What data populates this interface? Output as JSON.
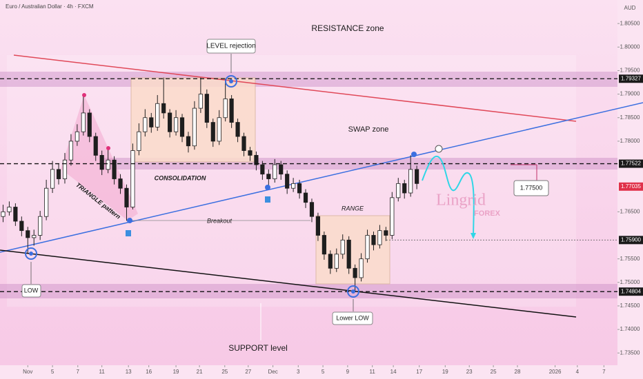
{
  "header": {
    "title": "Euro / Australian Dollar · 4h · FXCM",
    "currency": "AUD"
  },
  "chart_data": {
    "type": "candlestick",
    "up_color": "#1e1e1e",
    "down_color": "#1e1e1e",
    "xlim": [
      -0.5,
      99.5
    ],
    "ylim": [
      1.7324,
      1.81
    ],
    "x": [
      0,
      1,
      2,
      3,
      4,
      5,
      6,
      7,
      8,
      9,
      10,
      11,
      12,
      13,
      14,
      15,
      16,
      17,
      18,
      19,
      20,
      21,
      22,
      23,
      24,
      25,
      26,
      27,
      28,
      29,
      30,
      31,
      32,
      33,
      34,
      35,
      36,
      37,
      38,
      39,
      40,
      41,
      42,
      43,
      44,
      45,
      46,
      47,
      48,
      49,
      50,
      51,
      52,
      53,
      54,
      55,
      56,
      57,
      58,
      59,
      60,
      61,
      62,
      63,
      64,
      65,
      66,
      67
    ],
    "ohlc": [
      [
        1.764,
        1.7665,
        1.7628,
        1.765
      ],
      [
        1.765,
        1.7672,
        1.7642,
        1.766
      ],
      [
        1.766,
        1.7668,
        1.762,
        1.763
      ],
      [
        1.763,
        1.764,
        1.7598,
        1.761
      ],
      [
        1.761,
        1.7618,
        1.7562,
        1.7595
      ],
      [
        1.7595,
        1.7612,
        1.7578,
        1.76
      ],
      [
        1.76,
        1.7652,
        1.759,
        1.764
      ],
      [
        1.764,
        1.7718,
        1.7632,
        1.77
      ],
      [
        1.77,
        1.7758,
        1.769,
        1.774
      ],
      [
        1.774,
        1.7752,
        1.7708,
        1.772
      ],
      [
        1.772,
        1.7775,
        1.771,
        1.776
      ],
      [
        1.776,
        1.7815,
        1.7748,
        1.78
      ],
      [
        1.78,
        1.7836,
        1.779,
        1.782
      ],
      [
        1.782,
        1.7898,
        1.7812,
        1.786
      ],
      [
        1.786,
        1.7868,
        1.7798,
        1.781
      ],
      [
        1.781,
        1.7818,
        1.7758,
        1.777
      ],
      [
        1.777,
        1.778,
        1.7728,
        1.774
      ],
      [
        1.774,
        1.7785,
        1.7732,
        1.776
      ],
      [
        1.776,
        1.7768,
        1.7708,
        1.772
      ],
      [
        1.772,
        1.773,
        1.7688,
        1.77
      ],
      [
        1.77,
        1.7708,
        1.7631,
        1.766
      ],
      [
        1.766,
        1.7795,
        1.7655,
        1.778
      ],
      [
        1.778,
        1.7838,
        1.777,
        1.782
      ],
      [
        1.782,
        1.7868,
        1.781,
        1.785
      ],
      [
        1.785,
        1.786,
        1.7818,
        1.783
      ],
      [
        1.783,
        1.7898,
        1.7822,
        1.788
      ],
      [
        1.788,
        1.7935,
        1.7848,
        1.786
      ],
      [
        1.786,
        1.7868,
        1.7808,
        1.782
      ],
      [
        1.782,
        1.7866,
        1.7812,
        1.785
      ],
      [
        1.785,
        1.7858,
        1.7798,
        1.781
      ],
      [
        1.781,
        1.782,
        1.7776,
        1.779
      ],
      [
        1.779,
        1.7885,
        1.7782,
        1.787
      ],
      [
        1.787,
        1.7935,
        1.786,
        1.79
      ],
      [
        1.79,
        1.791,
        1.7828,
        1.784
      ],
      [
        1.784,
        1.7848,
        1.7788,
        1.78
      ],
      [
        1.78,
        1.7866,
        1.7792,
        1.785
      ],
      [
        1.785,
        1.7933,
        1.7842,
        1.789
      ],
      [
        1.789,
        1.7898,
        1.7828,
        1.784
      ],
      [
        1.784,
        1.7848,
        1.7798,
        1.781
      ],
      [
        1.781,
        1.7818,
        1.7768,
        1.778
      ],
      [
        1.778,
        1.7788,
        1.7758,
        1.777
      ],
      [
        1.777,
        1.7778,
        1.7738,
        1.775
      ],
      [
        1.775,
        1.7758,
        1.7718,
        1.773
      ],
      [
        1.773,
        1.774,
        1.7705,
        1.772
      ],
      [
        1.772,
        1.7762,
        1.7712,
        1.775
      ],
      [
        1.775,
        1.7758,
        1.7718,
        1.773
      ],
      [
        1.773,
        1.7738,
        1.7688,
        1.77
      ],
      [
        1.77,
        1.7722,
        1.7692,
        1.771
      ],
      [
        1.771,
        1.7718,
        1.7678,
        1.769
      ],
      [
        1.769,
        1.7698,
        1.7658,
        1.767
      ],
      [
        1.767,
        1.7678,
        1.7628,
        1.764
      ],
      [
        1.764,
        1.7648,
        1.7588,
        1.76
      ],
      [
        1.76,
        1.7608,
        1.7548,
        1.756
      ],
      [
        1.756,
        1.7568,
        1.7518,
        1.753
      ],
      [
        1.753,
        1.7572,
        1.7522,
        1.756
      ],
      [
        1.756,
        1.7602,
        1.755,
        1.759
      ],
      [
        1.759,
        1.7598,
        1.7518,
        1.753
      ],
      [
        1.753,
        1.7538,
        1.7482,
        1.751
      ],
      [
        1.751,
        1.7562,
        1.7502,
        1.755
      ],
      [
        1.755,
        1.7612,
        1.7542,
        1.76
      ],
      [
        1.76,
        1.7608,
        1.7568,
        1.758
      ],
      [
        1.758,
        1.7622,
        1.7572,
        1.761
      ],
      [
        1.761,
        1.7618,
        1.7588,
        1.76
      ],
      [
        1.76,
        1.7692,
        1.7592,
        1.768
      ],
      [
        1.768,
        1.7722,
        1.7672,
        1.771
      ],
      [
        1.771,
        1.7718,
        1.7678,
        1.769
      ],
      [
        1.769,
        1.777,
        1.7682,
        1.774
      ],
      [
        1.774,
        1.7748,
        1.7698,
        1.771
      ]
    ],
    "yticks": [
      {
        "value": 1.805,
        "label": "1.80500"
      },
      {
        "value": 1.8,
        "label": "1.80000"
      },
      {
        "value": 1.795,
        "label": "1.79500"
      },
      {
        "value": 1.79,
        "label": "1.79000"
      },
      {
        "value": 1.785,
        "label": "1.78500"
      },
      {
        "value": 1.78,
        "label": "1.78000"
      },
      {
        "value": 1.765,
        "label": "1.76500"
      },
      {
        "value": 1.755,
        "label": "1.75500"
      },
      {
        "value": 1.75,
        "label": "1.75000"
      },
      {
        "value": 1.745,
        "label": "1.74500"
      },
      {
        "value": 1.74,
        "label": "1.74000"
      },
      {
        "value": 1.735,
        "label": "1.73500"
      }
    ],
    "xticks": [
      {
        "value": 4.0,
        "label": "Nov"
      },
      {
        "value": 8.0,
        "label": "5"
      },
      {
        "value": 12.1,
        "label": "7"
      },
      {
        "value": 16.0,
        "label": "11"
      },
      {
        "value": 20.3,
        "label": "13"
      },
      {
        "value": 23.6,
        "label": "16"
      },
      {
        "value": 28.0,
        "label": "19"
      },
      {
        "value": 31.8,
        "label": "21"
      },
      {
        "value": 35.9,
        "label": "25"
      },
      {
        "value": 39.7,
        "label": "27"
      },
      {
        "value": 43.7,
        "label": "Dec"
      },
      {
        "value": 47.8,
        "label": "3"
      },
      {
        "value": 51.8,
        "label": "5"
      },
      {
        "value": 55.8,
        "label": "9"
      },
      {
        "value": 59.8,
        "label": "11"
      },
      {
        "value": 63.2,
        "label": "14"
      },
      {
        "value": 67.4,
        "label": "17"
      },
      {
        "value": 71.6,
        "label": "19"
      },
      {
        "value": 75.5,
        "label": "23"
      },
      {
        "value": 79.4,
        "label": "25"
      },
      {
        "value": 83.3,
        "label": "28"
      },
      {
        "value": 89.4,
        "label": "2026"
      },
      {
        "value": 93.0,
        "label": "4"
      },
      {
        "value": 97.3,
        "label": "7"
      }
    ],
    "price_levels": [
      {
        "value": 1.79327,
        "label": "1.79327",
        "style": "dashed"
      },
      {
        "value": 1.77522,
        "label": "1.77522",
        "style": "dashed"
      },
      {
        "value": 1.759,
        "label": "1.75900",
        "style": "dotted"
      },
      {
        "value": 1.74804,
        "label": "1.74804",
        "style": "dashed"
      }
    ],
    "last_price": {
      "value": 1.77035,
      "label": "1.77035",
      "color": "#e0314a"
    },
    "target": {
      "value": 1.775,
      "label": "1.77500"
    },
    "annotations": {
      "resistance": "RESISTANCE zone",
      "rejection": "LEVEL rejection",
      "swap": "SWAP zone",
      "consolidation": "CONSOLIDATION",
      "triangle": "TRIANGLE pattern",
      "breakout": "Breakout",
      "range": "RANGE",
      "low": "LOW",
      "lower_low": "Lower LOW",
      "support": "SUPPORT level",
      "brand": "Lingrid",
      "brand_sub": "FOREX"
    }
  }
}
